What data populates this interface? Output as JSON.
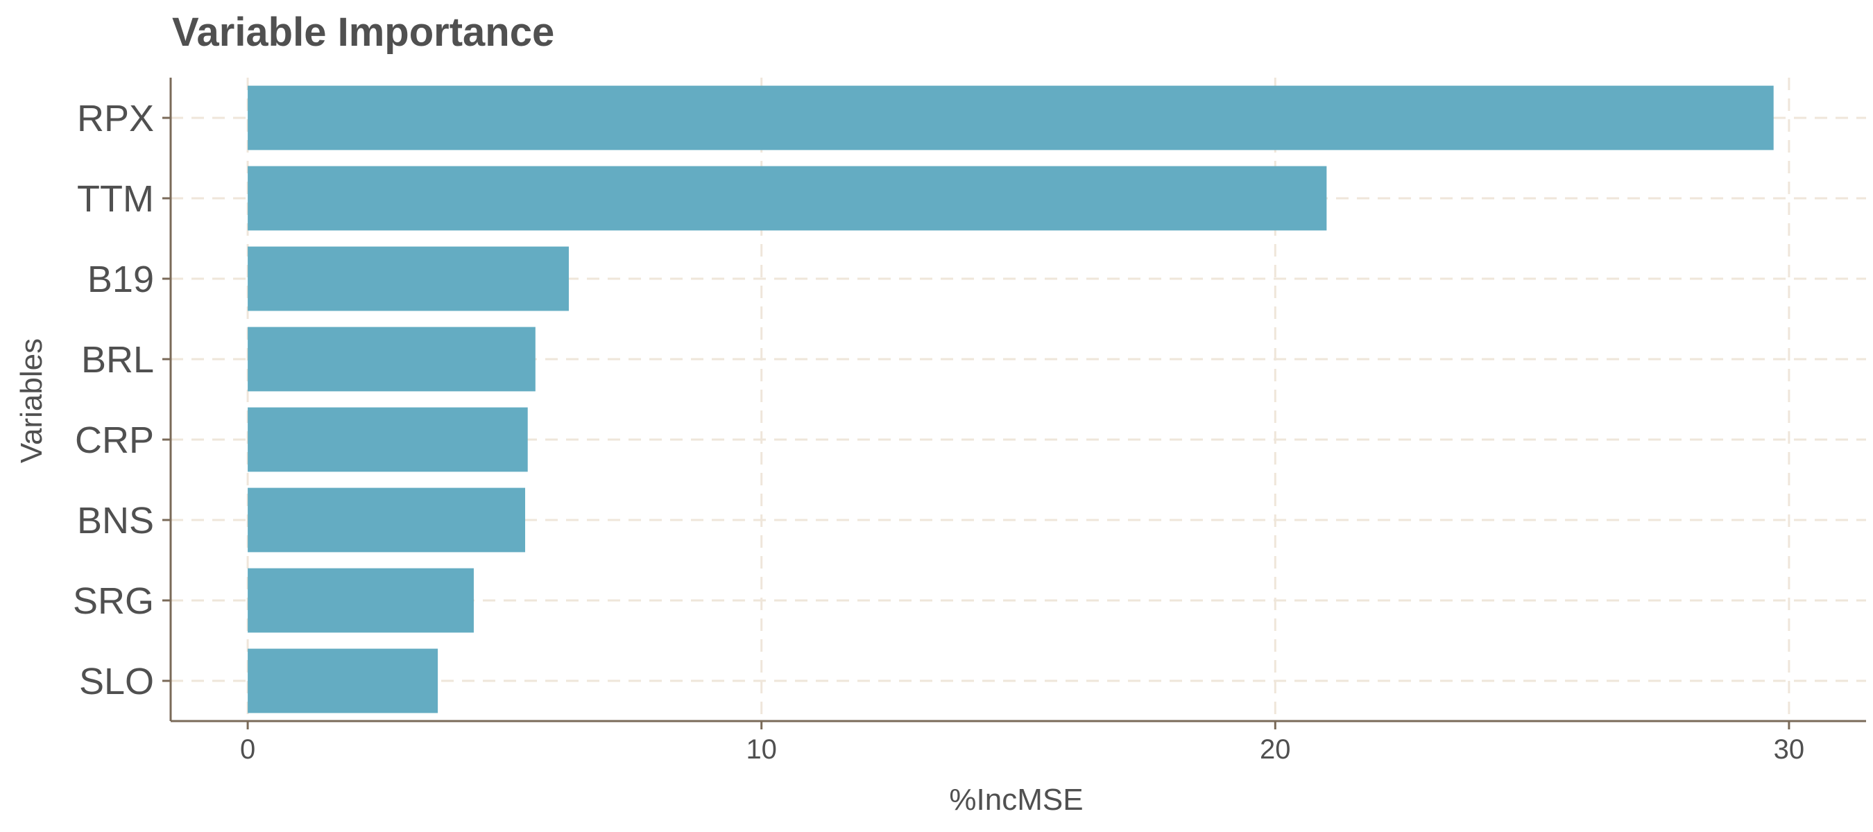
{
  "chart_data": {
    "type": "bar",
    "orientation": "horizontal",
    "title": "Variable Importance",
    "xlabel": "%IncMSE",
    "ylabel": "Variables",
    "categories": [
      "RPX",
      "TTM",
      "B19",
      "BRL",
      "CRP",
      "BNS",
      "SRG",
      "SLO"
    ],
    "values": [
      29.7,
      21.0,
      6.25,
      5.6,
      5.45,
      5.4,
      4.4,
      3.7
    ],
    "xlim": [
      -1.5,
      31.5
    ],
    "xticks": [
      0,
      10,
      20,
      30
    ],
    "grid": true,
    "legend": "none",
    "bar_color": "#64acc2"
  }
}
